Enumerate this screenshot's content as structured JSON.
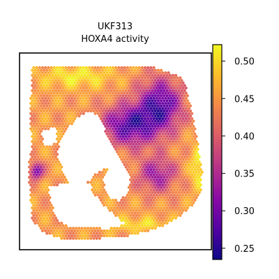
{
  "chart_data": {
    "type": "scatter",
    "title": "UKF313",
    "subtitle": "HOXA4 activity",
    "xlabel": "",
    "ylabel": "",
    "colormap": "plasma",
    "color_range": [
      0.235,
      0.522
    ],
    "colorbar": {
      "ticks": [
        0.25,
        0.3,
        0.35,
        0.4,
        0.45,
        0.5
      ],
      "tick_labels": [
        "0.25",
        "0.30",
        "0.35",
        "0.40",
        "0.45",
        "0.50"
      ]
    },
    "axes_visible": false,
    "grid": false,
    "legend": "none",
    "colormap_stops": [
      "#0d0887",
      "#5302a3",
      "#8b0aa5",
      "#b83289",
      "#db5c68",
      "#f48849",
      "#febd2a",
      "#f0f921"
    ]
  }
}
